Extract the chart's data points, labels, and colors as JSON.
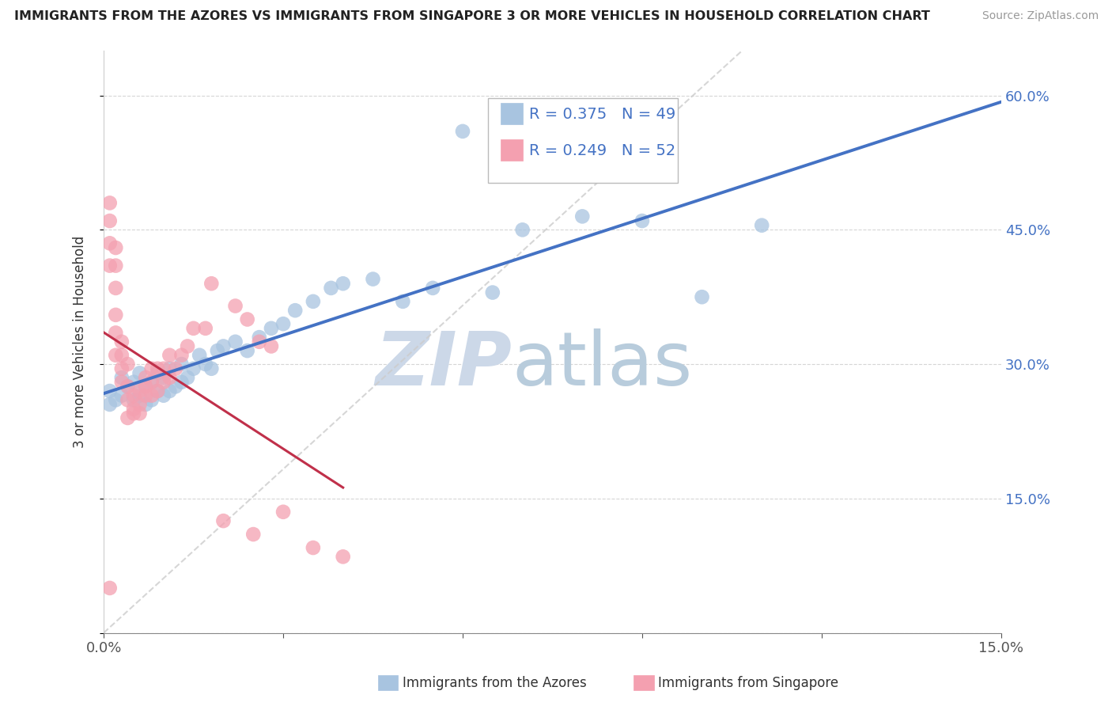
{
  "title": "IMMIGRANTS FROM THE AZORES VS IMMIGRANTS FROM SINGAPORE 3 OR MORE VEHICLES IN HOUSEHOLD CORRELATION CHART",
  "source": "Source: ZipAtlas.com",
  "ylabel": "3 or more Vehicles in Household",
  "xlim": [
    0.0,
    0.15
  ],
  "ylim": [
    0.0,
    0.65
  ],
  "xticks": [
    0.0,
    0.03,
    0.06,
    0.09,
    0.12,
    0.15
  ],
  "xtick_labels": [
    "0.0%",
    "",
    "",
    "",
    "",
    "15.0%"
  ],
  "yticks": [
    0.0,
    0.15,
    0.3,
    0.45,
    0.6
  ],
  "right_ytick_labels": [
    "",
    "15.0%",
    "30.0%",
    "45.0%",
    "60.0%"
  ],
  "legend_label1": "Immigrants from the Azores",
  "legend_label2": "Immigrants from Singapore",
  "R1": 0.375,
  "N1": 49,
  "R2": 0.249,
  "N2": 52,
  "color1": "#a8c4e0",
  "color2": "#f4a0b0",
  "line_color1": "#4472c4",
  "line_color2": "#c0304a",
  "ref_line_color": "#cccccc",
  "watermark_zip_color": "#ccd8e8",
  "watermark_atlas_color": "#b8ccdc",
  "azores_x": [
    0.001,
    0.001,
    0.002,
    0.003,
    0.003,
    0.004,
    0.005,
    0.005,
    0.006,
    0.006,
    0.007,
    0.007,
    0.008,
    0.008,
    0.009,
    0.009,
    0.01,
    0.01,
    0.011,
    0.011,
    0.012,
    0.013,
    0.013,
    0.014,
    0.015,
    0.016,
    0.017,
    0.018,
    0.019,
    0.02,
    0.022,
    0.024,
    0.026,
    0.028,
    0.03,
    0.032,
    0.035,
    0.038,
    0.04,
    0.045,
    0.05,
    0.055,
    0.06,
    0.065,
    0.07,
    0.08,
    0.09,
    0.1,
    0.11
  ],
  "azores_y": [
    0.27,
    0.255,
    0.26,
    0.265,
    0.285,
    0.275,
    0.26,
    0.28,
    0.265,
    0.29,
    0.255,
    0.275,
    0.26,
    0.28,
    0.27,
    0.29,
    0.265,
    0.285,
    0.27,
    0.295,
    0.275,
    0.28,
    0.3,
    0.285,
    0.295,
    0.31,
    0.3,
    0.295,
    0.315,
    0.32,
    0.325,
    0.315,
    0.33,
    0.34,
    0.345,
    0.36,
    0.37,
    0.385,
    0.39,
    0.395,
    0.37,
    0.385,
    0.56,
    0.38,
    0.45,
    0.465,
    0.46,
    0.375,
    0.455
  ],
  "singapore_x": [
    0.001,
    0.001,
    0.001,
    0.001,
    0.001,
    0.002,
    0.002,
    0.002,
    0.002,
    0.002,
    0.002,
    0.003,
    0.003,
    0.003,
    0.003,
    0.004,
    0.004,
    0.004,
    0.004,
    0.005,
    0.005,
    0.005,
    0.006,
    0.006,
    0.006,
    0.007,
    0.007,
    0.007,
    0.008,
    0.008,
    0.008,
    0.009,
    0.009,
    0.01,
    0.01,
    0.011,
    0.011,
    0.012,
    0.013,
    0.014,
    0.015,
    0.017,
    0.018,
    0.02,
    0.022,
    0.024,
    0.025,
    0.026,
    0.028,
    0.03,
    0.035,
    0.04
  ],
  "singapore_y": [
    0.48,
    0.46,
    0.435,
    0.41,
    0.05,
    0.43,
    0.41,
    0.385,
    0.355,
    0.335,
    0.31,
    0.325,
    0.31,
    0.295,
    0.28,
    0.3,
    0.275,
    0.26,
    0.24,
    0.25,
    0.265,
    0.245,
    0.255,
    0.27,
    0.245,
    0.265,
    0.275,
    0.285,
    0.265,
    0.28,
    0.295,
    0.27,
    0.295,
    0.28,
    0.295,
    0.285,
    0.31,
    0.295,
    0.31,
    0.32,
    0.34,
    0.34,
    0.39,
    0.125,
    0.365,
    0.35,
    0.11,
    0.325,
    0.32,
    0.135,
    0.095,
    0.085
  ]
}
